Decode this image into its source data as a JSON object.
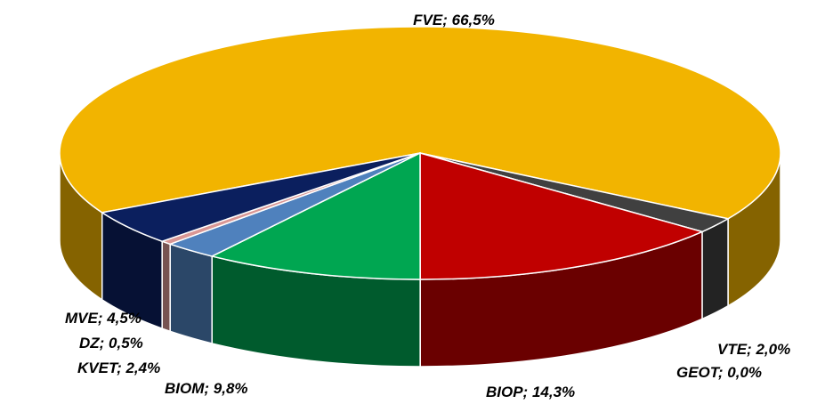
{
  "chart_data": {
    "type": "pie3d",
    "values": [
      66.5,
      2.0,
      0.0,
      14.3,
      9.8,
      2.4,
      0.5,
      4.5
    ],
    "value_labels": [
      "FVE; 66,5%",
      "VTE; 2,0%",
      "GEOT; 0,0%",
      "BIOP; 14,3%",
      "BIOM; 9,8%",
      "KVET; 2,4%",
      "DZ; 0,5%",
      "MVE; 4,5%"
    ],
    "colors": [
      "#f2b400",
      "#404040",
      "#7f7f7f",
      "#c00000",
      "#00a651",
      "#4f81bd",
      "#d99694",
      "#0b1f5e"
    ]
  }
}
